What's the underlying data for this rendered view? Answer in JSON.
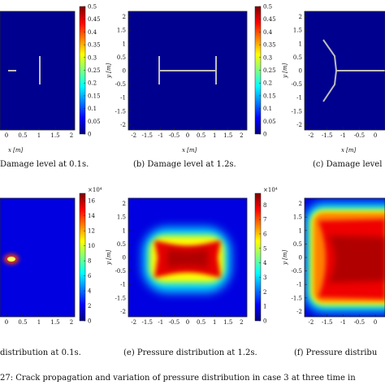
{
  "figure_caption": "27: Crack propagation and variation of pressure distribution in case 3 at three time in",
  "colors": {
    "bg": "#00008f",
    "crack": "#bdbdbd"
  },
  "colorbar_stops": [
    "#00007f",
    "#0000ff",
    "#0080ff",
    "#00ffff",
    "#80ff80",
    "#ffff00",
    "#ff8000",
    "#ff0000",
    "#7f0000"
  ],
  "chart_data": [
    {
      "type": "heatmap",
      "panel": "a",
      "caption": "Damage level at 0.1s.",
      "caption_prefix": "",
      "ylabel": "",
      "xlabel": "x [m]",
      "xticks": [
        "0",
        "0.5",
        "1",
        "1.5",
        "2"
      ],
      "xlim": [
        -0.2,
        2.1
      ],
      "ylim": [
        -2.2,
        2.2
      ],
      "colorbar": {
        "ticks": [
          "0",
          "0.05",
          "0.1",
          "0.15",
          "0.2",
          "0.25",
          "0.3",
          "0.35",
          "0.4",
          "0.45",
          "0.5"
        ],
        "min": 0,
        "max": 0.5,
        "exponent": ""
      }
    },
    {
      "type": "heatmap",
      "panel": "b",
      "caption": "(b) Damage level at 1.2s.",
      "caption_prefix": "",
      "ylabel": "y [m]",
      "xlabel": "x [m]",
      "xticks": [
        "-2",
        "-1.5",
        "-1",
        "-0.5",
        "0",
        "0.5",
        "1",
        "1.5",
        "2"
      ],
      "yticks": [
        "-2",
        "-1.5",
        "-1",
        "-0.5",
        "0",
        "0.5",
        "1",
        "1.5",
        "2"
      ],
      "xlim": [
        -2.2,
        2.2
      ],
      "ylim": [
        -2.2,
        2.2
      ],
      "colorbar": {
        "ticks": [
          "0",
          "0.05",
          "0.1",
          "0.15",
          "0.2",
          "0.25",
          "0.3",
          "0.35",
          "0.4",
          "0.45",
          "0.5"
        ],
        "min": 0,
        "max": 0.5,
        "exponent": ""
      }
    },
    {
      "type": "heatmap",
      "panel": "c",
      "caption": "(c) Damage level",
      "ylabel": "y [m]",
      "xlabel": "x [m]",
      "xticks": [
        "-2",
        "-1.5",
        "-1",
        "-0.5",
        "0"
      ],
      "yticks": [
        "-2",
        "-1.5",
        "-1",
        "-0.5",
        "0",
        "0.5",
        "1",
        "1.5",
        "2"
      ],
      "xlim": [
        -2.2,
        0.3
      ],
      "ylim": [
        -2.2,
        2.2
      ]
    },
    {
      "type": "heatmap",
      "panel": "d",
      "caption": "distribution at 0.1s.",
      "xlabel": "",
      "xticks": [
        "0",
        "0.5",
        "1",
        "1.5",
        "2"
      ],
      "xlim": [
        -0.2,
        2.1
      ],
      "ylim": [
        -2.2,
        2.2
      ],
      "colorbar": {
        "ticks": [
          "0",
          "2",
          "4",
          "6",
          "8",
          "10",
          "12",
          "14",
          "16"
        ],
        "min": 0,
        "max": 17,
        "exponent": "×10⁴"
      }
    },
    {
      "type": "heatmap",
      "panel": "e",
      "caption": "(e) Pressure distribution at 1.2s.",
      "ylabel": "y [m]",
      "xlabel": "",
      "xticks": [
        "-2",
        "-1.5",
        "-1",
        "-0.5",
        "0",
        "0.5",
        "1",
        "1.5",
        "2"
      ],
      "yticks": [
        "-2",
        "-1.5",
        "-1",
        "-0.5",
        "0",
        "0.5",
        "1",
        "1.5",
        "2"
      ],
      "xlim": [
        -2.2,
        2.2
      ],
      "ylim": [
        -2.2,
        2.2
      ],
      "colorbar": {
        "ticks": [
          "0",
          "1",
          "2",
          "3",
          "4",
          "5",
          "6",
          "7",
          "8"
        ],
        "min": 0,
        "max": 8.8,
        "exponent": "×10⁴"
      }
    },
    {
      "type": "heatmap",
      "panel": "f",
      "caption": "(f) Pressure distribu",
      "ylabel": "y [m]",
      "xlabel": "",
      "xticks": [
        "-2",
        "-1.5",
        "-1",
        "-0.5",
        "0"
      ],
      "yticks": [
        "-2",
        "-1.5",
        "-1",
        "-0.5",
        "0",
        "0.5",
        "1",
        "1.5",
        "2"
      ],
      "xlim": [
        -2.2,
        0.3
      ],
      "ylim": [
        -2.2,
        2.2
      ]
    }
  ]
}
